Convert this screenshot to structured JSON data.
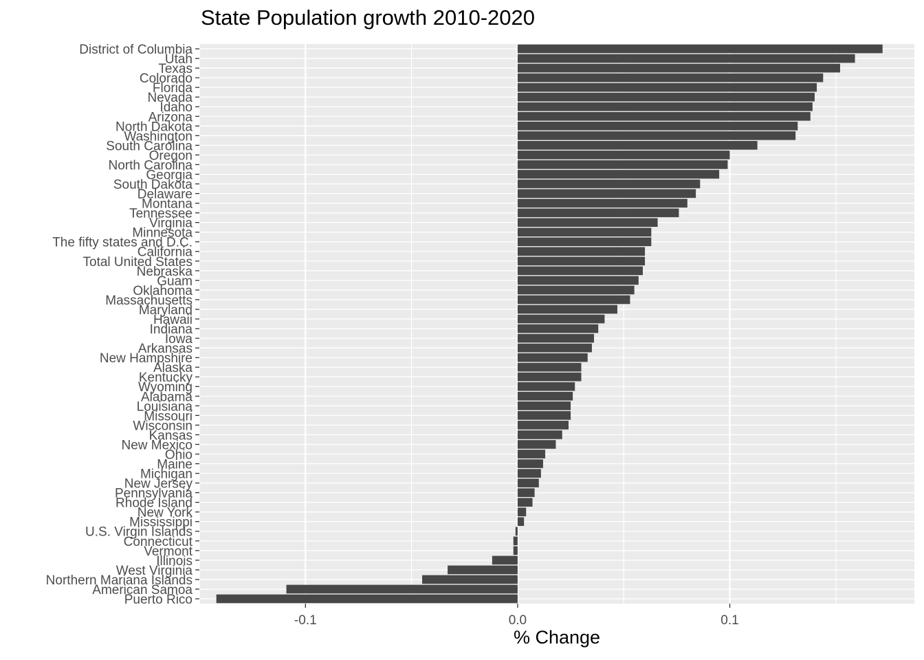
{
  "chart_data": {
    "type": "bar",
    "orientation": "horizontal",
    "title": "State Population growth 2010-2020",
    "xlabel": "% Change",
    "ylabel": "",
    "xlim": [
      -0.15,
      0.187
    ],
    "xticks": [
      -0.1,
      0.0,
      0.1
    ],
    "xtick_labels": [
      "-0.1",
      "0.0",
      "0.1"
    ],
    "grid": true,
    "bar_color": "#474747",
    "panel_color": "#ebebeb",
    "categories": [
      "District of Columbia",
      "Utah",
      "Texas",
      "Colorado",
      "Florida",
      "Nevada",
      "Idaho",
      "Arizona",
      "North Dakota",
      "Washington",
      "South Carolina",
      "Oregon",
      "North Carolina",
      "Georgia",
      "South Dakota",
      "Delaware",
      "Montana",
      "Tennessee",
      "Virginia",
      "Minnesota",
      "The fifty states and D.C.",
      "California",
      "Total United States",
      "Nebraska",
      "Guam",
      "Oklahoma",
      "Massachusetts",
      "Maryland",
      "Hawaii",
      "Indiana",
      "Iowa",
      "Arkansas",
      "New Hampshire",
      "Alaska",
      "Kentucky",
      "Wyoming",
      "Alabama",
      "Louisiana",
      "Missouri",
      "Wisconsin",
      "Kansas",
      "New Mexico",
      "Ohio",
      "Maine",
      "Michigan",
      "New Jersey",
      "Pennsylvania",
      "Rhode Island",
      "New York",
      "Mississippi",
      "U.S. Virgin Islands",
      "Connecticut",
      "Vermont",
      "Illinois",
      "West Virginia",
      "Northern Mariana Islands",
      "American Samoa",
      "Puerto Rico"
    ],
    "values": [
      0.172,
      0.159,
      0.152,
      0.144,
      0.141,
      0.14,
      0.139,
      0.138,
      0.132,
      0.131,
      0.113,
      0.1,
      0.099,
      0.095,
      0.086,
      0.084,
      0.08,
      0.076,
      0.066,
      0.063,
      0.063,
      0.06,
      0.06,
      0.059,
      0.057,
      0.055,
      0.053,
      0.047,
      0.041,
      0.038,
      0.036,
      0.035,
      0.033,
      0.03,
      0.03,
      0.027,
      0.026,
      0.025,
      0.025,
      0.024,
      0.021,
      0.018,
      0.013,
      0.012,
      0.011,
      0.01,
      0.008,
      0.007,
      0.004,
      0.003,
      -0.001,
      -0.002,
      -0.002,
      -0.012,
      -0.033,
      -0.045,
      -0.109,
      -0.142
    ]
  }
}
